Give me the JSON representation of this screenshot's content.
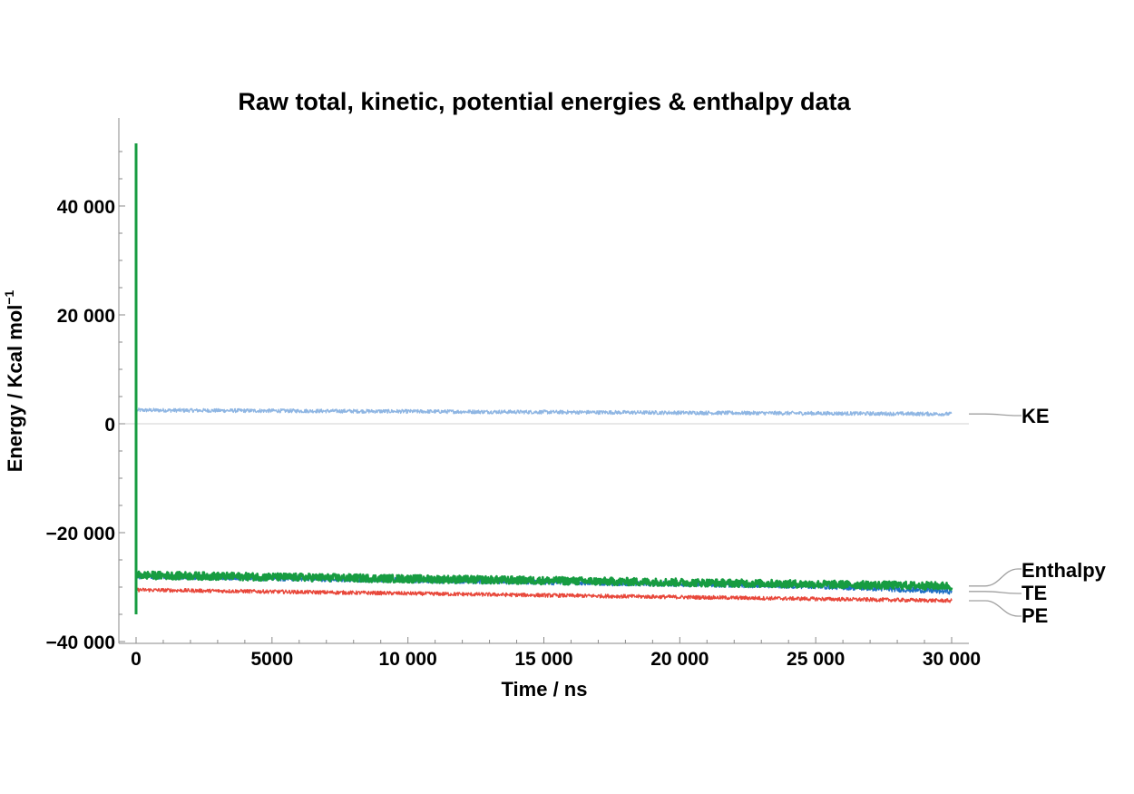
{
  "chart_data": {
    "type": "line",
    "title": "Raw total, kinetic, potential energies & enthalpy data",
    "xlabel": "Time / ns",
    "ylabel_main": "Energy / Kcal mol",
    "ylabel_sup": "−1",
    "xlim": [
      0,
      30000
    ],
    "ylim": [
      -40000,
      56000
    ],
    "x_ticks": [
      0,
      5000,
      10000,
      15000,
      20000,
      25000,
      30000
    ],
    "x_tick_labels": [
      "0",
      "5000",
      "10 000",
      "15 000",
      "20 000",
      "25 000",
      "30 000"
    ],
    "y_ticks": [
      -40000,
      -20000,
      0,
      20000,
      40000
    ],
    "y_tick_labels": [
      "−40 000",
      "−20 000",
      "0",
      "20 000",
      "40 000"
    ],
    "grid": false,
    "legend": "callout-labels-right",
    "series": [
      {
        "name": "KE",
        "color": "#8fb6e3",
        "noise": 350,
        "points": [
          [
            0,
            2500
          ],
          [
            30000,
            1800
          ]
        ]
      },
      {
        "name": "PE",
        "color": "#e8473a",
        "noise": 350,
        "points": [
          [
            0,
            -30500
          ],
          [
            30000,
            -32500
          ]
        ]
      },
      {
        "name": "TE",
        "color": "#1f6fc5",
        "noise": 500,
        "points": [
          [
            0,
            -28000
          ],
          [
            25000,
            -29800
          ],
          [
            30000,
            -30800
          ]
        ]
      },
      {
        "name": "Enthalpy",
        "color": "#179c41",
        "noise": 700,
        "points": [
          [
            0,
            -27800
          ],
          [
            30000,
            -29800
          ]
        ],
        "initial_spike": {
          "max": 51500,
          "min": -35000
        }
      }
    ]
  }
}
